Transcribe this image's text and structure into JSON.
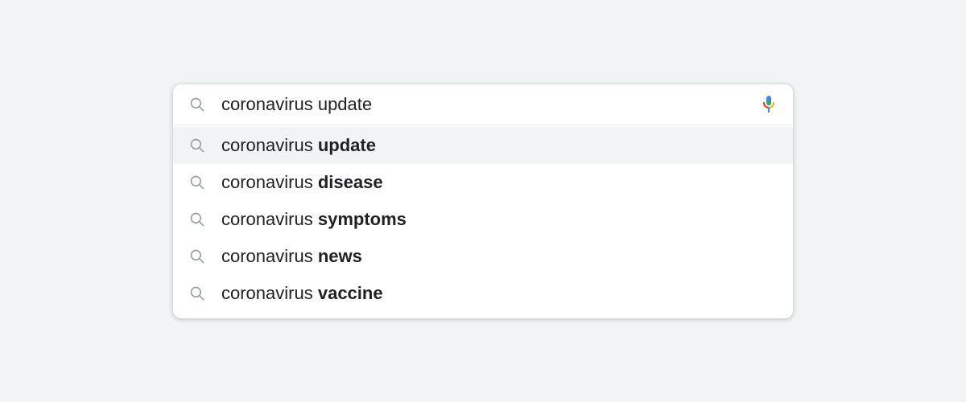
{
  "colors": {
    "page_background": "#f1f3f4",
    "container_background": "#ffffff",
    "text_color": "#202124",
    "icon_color": "#9aa0a6",
    "divider_color": "#e8eaed",
    "highlight_background": "#f1f3f4",
    "mic_blue": "#4285f4",
    "mic_red": "#ea4335",
    "mic_yellow": "#fbbc05",
    "mic_green": "#34a853"
  },
  "typography": {
    "input_fontsize": 22,
    "suggestion_fontsize": 22,
    "font_family": "Arial, sans-serif"
  },
  "layout": {
    "container_width": 770,
    "container_border_radius": 10
  },
  "search": {
    "query": "coronavirus update",
    "placeholder": ""
  },
  "suggestions": [
    {
      "prefix": "coronavirus ",
      "completion": "update",
      "highlighted": true
    },
    {
      "prefix": "coronavirus ",
      "completion": "disease",
      "highlighted": false
    },
    {
      "prefix": "coronavirus ",
      "completion": "symptoms",
      "highlighted": false
    },
    {
      "prefix": "coronavirus ",
      "completion": "news",
      "highlighted": false
    },
    {
      "prefix": "coronavirus ",
      "completion": "vaccine",
      "highlighted": false
    }
  ]
}
